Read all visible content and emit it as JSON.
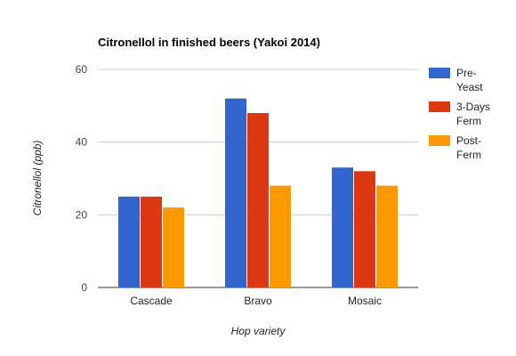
{
  "chart_data": {
    "type": "bar",
    "title": "Citronellol in finished beers (Yakoi 2014)",
    "xlabel": "Hop variety",
    "ylabel": "Citronellol (ppb)",
    "categories": [
      "Cascade",
      "Bravo",
      "Mosaic"
    ],
    "ylim": [
      0,
      60
    ],
    "yticks": [
      "0",
      "20",
      "40",
      "60"
    ],
    "grid": true,
    "legend_position": "right",
    "series": [
      {
        "name": "Pre-Yeast",
        "legend_lines": [
          "Pre-",
          "Yeast"
        ],
        "color": "#3366cc",
        "values": [
          25,
          52,
          33
        ]
      },
      {
        "name": "3-Days Ferm",
        "legend_lines": [
          "3-Days",
          "Ferm"
        ],
        "color": "#dc3912",
        "values": [
          25,
          48,
          32
        ]
      },
      {
        "name": "Post-Ferm",
        "legend_lines": [
          "Post-",
          "Ferm"
        ],
        "color": "#ff9900",
        "values": [
          22,
          28,
          28
        ]
      }
    ]
  }
}
